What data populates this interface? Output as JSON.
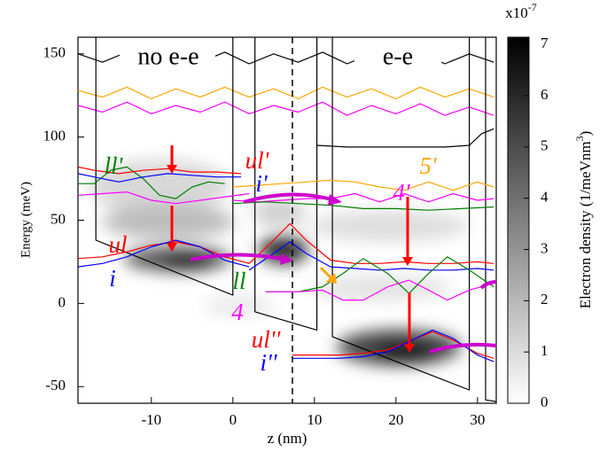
{
  "chart_data": {
    "type": "line",
    "xlabel": "z (nm)",
    "ylabel": "Energy (meV)",
    "xlim": [
      -19,
      32.3
    ],
    "ylim": [
      -60,
      160
    ],
    "xticks": [
      -10,
      0,
      10,
      20,
      30
    ],
    "yticks": [
      -50,
      0,
      50,
      100,
      150
    ],
    "vline_x": 7.3,
    "annotations": [
      "no e-e",
      "e-e"
    ],
    "colorbar": {
      "label_parts": [
        "Electron density (1/meVnm",
        "3",
        ")"
      ],
      "scale_base": "x10",
      "scale_exponent": "-7",
      "clim": [
        0,
        7.14
      ],
      "ticks": [
        0,
        1,
        2,
        3,
        4,
        5,
        6,
        7
      ]
    },
    "series": [
      {
        "color": "#000000",
        "x": [
          -19,
          -16,
          -13,
          -10,
          -7,
          -4,
          -1,
          2,
          5,
          8,
          11,
          14,
          17,
          20,
          23,
          26,
          29,
          32
        ],
        "values": [
          150,
          145,
          151,
          144,
          150,
          145,
          151,
          144,
          150,
          145,
          151,
          144,
          150,
          145,
          151,
          144,
          150,
          145
        ]
      },
      {
        "color": "#ffa500",
        "x": [
          -19,
          -16,
          -13,
          -10,
          -7,
          -4,
          -1,
          2,
          5,
          8,
          11,
          14,
          17,
          20,
          23,
          26,
          29,
          32
        ],
        "values": [
          128,
          124,
          130,
          123,
          129,
          124,
          130,
          124,
          129,
          123,
          130,
          124,
          129,
          123,
          130,
          124,
          129,
          124
        ]
      },
      {
        "color": "#ff00ff",
        "x": [
          -19,
          -16,
          -13,
          -10,
          -7,
          -4,
          -1,
          2,
          5,
          8,
          11,
          14,
          17,
          20,
          23,
          26,
          29,
          32
        ],
        "values": [
          119,
          115,
          121,
          114,
          119,
          115,
          121,
          114,
          119,
          115,
          121,
          113,
          119,
          114,
          120,
          113,
          118,
          113
        ]
      },
      {
        "color": "#000000",
        "x": [
          10.3,
          14,
          17,
          20,
          23,
          26,
          29,
          30.5,
          32
        ],
        "values": [
          95,
          94,
          94,
          94,
          94,
          94,
          95,
          102,
          105
        ]
      },
      {
        "color": "#000000",
        "x": [
          -16.8,
          -16.8,
          0,
          0,
          0,
          2.7,
          2.7,
          10.3,
          10.3,
          10.3,
          12.2,
          12.2,
          29,
          29,
          29,
          31,
          31,
          32.3
        ],
        "values": [
          160,
          38,
          5,
          160,
          null,
          160,
          -5,
          -16,
          160,
          null,
          160,
          -20,
          -52,
          160,
          null,
          160,
          -58,
          -59
        ]
      },
      {
        "name": "ll'",
        "color": "#008000",
        "x": [
          -19,
          -17,
          -15,
          -13,
          -11,
          -9,
          -7,
          -5,
          -3,
          -1
        ],
        "values": [
          72,
          72,
          80,
          82,
          75,
          65,
          63,
          70,
          73,
          72
        ]
      },
      {
        "name": "ul'",
        "color": "#ff0000",
        "x": [
          -19,
          -17,
          -14,
          -11,
          -8,
          -5,
          -2,
          1
        ],
        "values": [
          82,
          80,
          78,
          80,
          81,
          79,
          79,
          78
        ]
      },
      {
        "name": "i'",
        "color": "#0000ff",
        "x": [
          -19,
          -17,
          -14,
          -11,
          -8,
          -5,
          -2,
          1
        ],
        "values": [
          78,
          76,
          73,
          76,
          78,
          77,
          76,
          76
        ]
      },
      {
        "color": "#ff00ff",
        "x": [
          -19,
          -16,
          -13,
          -10,
          -7,
          -4,
          -1,
          2
        ],
        "values": [
          65,
          66,
          67,
          62,
          60,
          62,
          64,
          66
        ]
      },
      {
        "name": "5'",
        "color": "#ffa500",
        "x": [
          0,
          3,
          6,
          9,
          12,
          15,
          18,
          21,
          24,
          27,
          30,
          32
        ],
        "values": [
          70,
          71,
          72,
          73,
          74,
          73,
          70,
          68,
          73,
          68,
          73,
          70
        ]
      },
      {
        "name": "4'",
        "color": "#ff00ff",
        "x": [
          0,
          3,
          6,
          9,
          12,
          15,
          18,
          21,
          24,
          27,
          30,
          32
        ],
        "values": [
          62,
          61,
          62,
          63,
          63,
          66,
          61,
          66,
          61,
          66,
          62,
          63
        ]
      },
      {
        "color": "#008000",
        "x": [
          0,
          4,
          8,
          12,
          16,
          20,
          24,
          28,
          32
        ],
        "values": [
          60,
          61,
          60,
          59,
          57,
          57,
          56,
          57,
          58
        ]
      },
      {
        "name": "ul",
        "color": "#ff0000",
        "x": [
          -19,
          -16,
          -13,
          -10,
          -7,
          -4,
          -1,
          2
        ],
        "values": [
          27,
          28,
          31,
          35,
          37,
          34,
          28,
          24
        ]
      },
      {
        "name": "i",
        "color": "#0000ff",
        "x": [
          -19,
          -16,
          -13,
          -10,
          -7,
          -4,
          -1,
          2
        ],
        "values": [
          22,
          24,
          28,
          34,
          38,
          34,
          26,
          22
        ]
      },
      {
        "color": "#ff0000",
        "x": [
          2,
          5,
          7,
          9,
          12,
          15,
          18,
          21,
          24,
          27,
          30,
          32
        ],
        "values": [
          24,
          38,
          48,
          38,
          26,
          24,
          24,
          25,
          24,
          24,
          25,
          24
        ]
      },
      {
        "color": "#0000ff",
        "x": [
          2,
          5,
          7,
          9,
          12,
          15,
          18,
          21,
          24,
          27,
          30,
          32
        ],
        "values": [
          20,
          30,
          37,
          30,
          22,
          21,
          20,
          21,
          20,
          20,
          21,
          20
        ]
      },
      {
        "name": "ll",
        "color": "#008000",
        "x": [
          4,
          8,
          11,
          13.5,
          16,
          19,
          21.6,
          24,
          26.3,
          29,
          32
        ],
        "values": [
          7,
          7,
          10,
          18,
          27,
          18,
          6,
          18,
          28,
          20,
          10
        ]
      },
      {
        "name": "4",
        "color": "#ff00ff",
        "x": [
          4,
          8,
          11,
          13.5,
          16,
          19,
          21.6,
          24,
          26.3,
          29,
          32
        ],
        "values": [
          7,
          7,
          8,
          2,
          2,
          10,
          14,
          8,
          2,
          8,
          12
        ]
      },
      {
        "name": "ul''",
        "color": "#ff0000",
        "x": [
          7.3,
          10,
          13,
          16,
          19,
          22,
          24.5,
          27,
          30,
          32
        ],
        "values": [
          -31,
          -31,
          -31,
          -30,
          -28,
          -22,
          -17,
          -22,
          -30,
          -33
        ]
      },
      {
        "name": "i''",
        "color": "#0000ff",
        "x": [
          7.3,
          10,
          13,
          16,
          19,
          22,
          24.5,
          27,
          30,
          32
        ],
        "values": [
          -33,
          -33,
          -33,
          -32,
          -29,
          -22,
          -16,
          -21,
          -31,
          -35
        ]
      }
    ]
  }
}
